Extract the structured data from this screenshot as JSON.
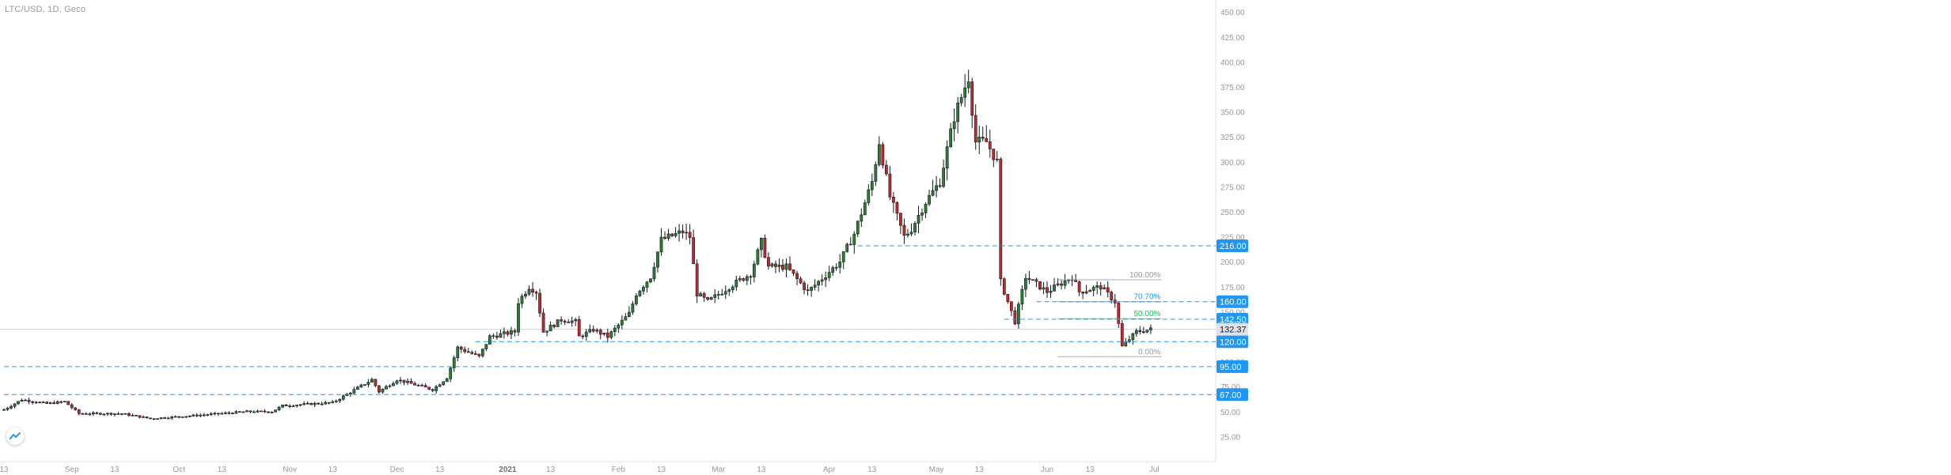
{
  "header": {
    "symbol_title": "LTC/USD, 1D, Geco"
  },
  "chart_data": {
    "type": "candlestick",
    "title": "LTC/USD, 1D, Geco",
    "xlabel": "",
    "ylabel": "",
    "x_range": [
      "2020-08-13",
      "2021-07-08"
    ],
    "ylim": [
      0,
      462
    ],
    "y_ticks": [
      25,
      50,
      75,
      100,
      125,
      150,
      175,
      200,
      225,
      250,
      275,
      300,
      325,
      350,
      375,
      400,
      425,
      450
    ],
    "y_tick_labels": [
      "25.00",
      "50.00",
      "75.00",
      "100.00",
      "125.00",
      "150.00",
      "175.00",
      "200.00",
      "225.00",
      "250.00",
      "275.00",
      "300.00",
      "325.00",
      "350.00",
      "375.00",
      "400.00",
      "425.00",
      "450.00"
    ],
    "x_ticks": [
      {
        "date": "2020-08-13",
        "label": "13",
        "bold": false
      },
      {
        "date": "2020-09-01",
        "label": "Sep",
        "bold": false
      },
      {
        "date": "2020-09-13",
        "label": "13",
        "bold": false
      },
      {
        "date": "2020-10-01",
        "label": "Oct",
        "bold": false
      },
      {
        "date": "2020-10-13",
        "label": "13",
        "bold": false
      },
      {
        "date": "2020-11-01",
        "label": "Nov",
        "bold": false
      },
      {
        "date": "2020-11-13",
        "label": "13",
        "bold": false
      },
      {
        "date": "2020-12-01",
        "label": "Dec",
        "bold": false
      },
      {
        "date": "2020-12-13",
        "label": "13",
        "bold": false
      },
      {
        "date": "2021-01-01",
        "label": "2021",
        "bold": true
      },
      {
        "date": "2021-01-13",
        "label": "13",
        "bold": false
      },
      {
        "date": "2021-02-01",
        "label": "Feb",
        "bold": false
      },
      {
        "date": "2021-02-13",
        "label": "13",
        "bold": false
      },
      {
        "date": "2021-03-01",
        "label": "Mar",
        "bold": false
      },
      {
        "date": "2021-03-13",
        "label": "13",
        "bold": false
      },
      {
        "date": "2021-04-01",
        "label": "Apr",
        "bold": false
      },
      {
        "date": "2021-04-13",
        "label": "13",
        "bold": false
      },
      {
        "date": "2021-05-01",
        "label": "May",
        "bold": false
      },
      {
        "date": "2021-05-13",
        "label": "13",
        "bold": false
      },
      {
        "date": "2021-06-01",
        "label": "Jun",
        "bold": false
      },
      {
        "date": "2021-06-13",
        "label": "13",
        "bold": false
      },
      {
        "date": "2021-07-01",
        "label": "Jul",
        "bold": false
      }
    ],
    "key_points": [
      [
        "2020-08-13",
        52
      ],
      [
        "2020-08-18",
        62
      ],
      [
        "2020-08-25",
        58
      ],
      [
        "2020-08-30",
        60
      ],
      [
        "2020-09-03",
        48
      ],
      [
        "2020-09-15",
        48
      ],
      [
        "2020-09-23",
        43
      ],
      [
        "2020-10-05",
        46
      ],
      [
        "2020-10-20",
        50
      ],
      [
        "2020-10-27",
        50
      ],
      [
        "2020-10-30",
        56
      ],
      [
        "2020-11-13",
        59
      ],
      [
        "2020-11-24",
        82
      ],
      [
        "2020-11-26",
        70
      ],
      [
        "2020-12-01",
        82
      ],
      [
        "2020-12-11",
        72
      ],
      [
        "2020-12-15",
        84
      ],
      [
        "2020-12-18",
        114
      ],
      [
        "2020-12-24",
        105
      ],
      [
        "2020-12-27",
        125
      ],
      [
        "2021-01-03",
        130
      ],
      [
        "2021-01-04",
        160
      ],
      [
        "2021-01-07",
        175
      ],
      [
        "2021-01-09",
        170
      ],
      [
        "2021-01-11",
        130
      ],
      [
        "2021-01-16",
        142
      ],
      [
        "2021-01-20",
        140
      ],
      [
        "2021-01-21",
        125
      ],
      [
        "2021-01-25",
        132
      ],
      [
        "2021-01-29",
        125
      ],
      [
        "2021-02-04",
        148
      ],
      [
        "2021-02-06",
        168
      ],
      [
        "2021-02-10",
        185
      ],
      [
        "2021-02-13",
        222
      ],
      [
        "2021-02-19",
        230
      ],
      [
        "2021-02-21",
        225
      ],
      [
        "2021-02-23",
        168
      ],
      [
        "2021-02-26",
        160
      ],
      [
        "2021-03-04",
        175
      ],
      [
        "2021-03-10",
        188
      ],
      [
        "2021-03-13",
        220
      ],
      [
        "2021-03-15",
        195
      ],
      [
        "2021-03-20",
        195
      ],
      [
        "2021-03-26",
        170
      ],
      [
        "2021-04-04",
        200
      ],
      [
        "2021-04-08",
        228
      ],
      [
        "2021-04-13",
        280
      ],
      [
        "2021-04-15",
        320
      ],
      [
        "2021-04-18",
        265
      ],
      [
        "2021-04-22",
        225
      ],
      [
        "2021-04-24",
        233
      ],
      [
        "2021-04-28",
        260
      ],
      [
        "2021-05-02",
        280
      ],
      [
        "2021-05-06",
        345
      ],
      [
        "2021-05-10",
        385
      ],
      [
        "2021-05-12",
        320
      ],
      [
        "2021-05-15",
        320
      ],
      [
        "2021-05-18",
        300
      ],
      [
        "2021-05-19",
        180
      ],
      [
        "2021-05-23",
        140
      ],
      [
        "2021-05-26",
        185
      ],
      [
        "2021-06-01",
        170
      ],
      [
        "2021-06-08",
        185
      ],
      [
        "2021-06-10",
        170
      ],
      [
        "2021-06-16",
        175
      ],
      [
        "2021-06-20",
        160
      ],
      [
        "2021-06-22",
        115
      ],
      [
        "2021-06-26",
        130
      ],
      [
        "2021-06-30",
        132.37
      ]
    ],
    "last_price": 132.37,
    "last_price_label": "132.37",
    "horizontal_levels": [
      {
        "price": 216,
        "label": "216.00",
        "start_date": "2021-04-09",
        "color": "#2196f3"
      },
      {
        "price": 160,
        "label": "160.00",
        "start_date": "2021-05-29",
        "color": "#2196f3"
      },
      {
        "price": 142.5,
        "label": "142.50",
        "start_date": "2021-05-20",
        "color": "#2196f3"
      },
      {
        "price": 120,
        "label": "120.00",
        "start_date": "2020-12-23",
        "color": "#2196f3"
      },
      {
        "price": 95,
        "label": "95.00",
        "start_date": "2020-08-13",
        "color": "#2196f3"
      },
      {
        "price": 67,
        "label": "67.00",
        "start_date": "2020-08-13",
        "color": "#2196f3"
      }
    ],
    "fibonacci": {
      "start_date": "2021-06-04",
      "end_date": "2021-07-03",
      "levels": [
        {
          "label": "100.00%",
          "price": 182,
          "color": "#9598a1"
        },
        {
          "label": "70.70%",
          "price": 160,
          "color": "#2196f3"
        },
        {
          "label": "50.00%",
          "price": 143,
          "color": "#00c853"
        },
        {
          "label": "0.00%",
          "price": 105,
          "color": "#9598a1"
        }
      ]
    },
    "colors": {
      "up": "#26a69a",
      "down": "#ef5350",
      "up_body": "#2e7d32",
      "down_body": "#c62828",
      "wick": "#131722",
      "level": "#2196f3",
      "axis_text": "#9598a1"
    }
  }
}
